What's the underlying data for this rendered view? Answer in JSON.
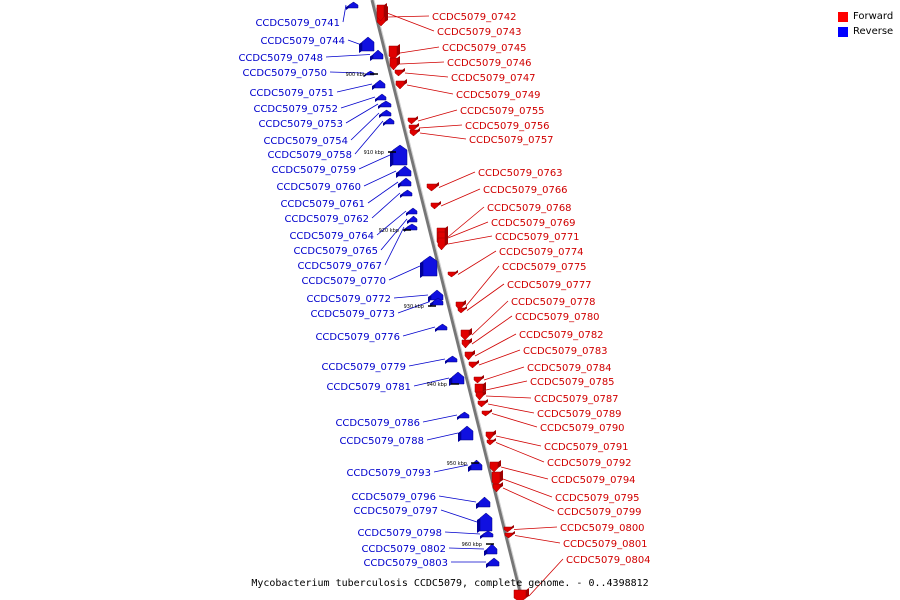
{
  "legend": [
    {
      "label": "Forward",
      "color": "#ff0000"
    },
    {
      "label": "Reverse",
      "color": "#0000ff"
    }
  ],
  "caption": "Mycobacterium tuberculosis CCDC5079, complete genome. - 0..4398812",
  "colors": {
    "forward": "#e00000",
    "reverse": "#1010e0",
    "forward_label": "#d00000",
    "reverse_label": "#0000cc",
    "backbone": "#999999"
  },
  "scale_ticks": [
    "900 kbp",
    "910 kbp",
    "920 kbp",
    "930 kbp",
    "940 kbp",
    "950 kbp",
    "960 kbp"
  ],
  "genes_forward": [
    "CCDC5079_0742",
    "CCDC5079_0743",
    "CCDC5079_0745",
    "CCDC5079_0746",
    "CCDC5079_0747",
    "CCDC5079_0749",
    "CCDC5079_0755",
    "CCDC5079_0756",
    "CCDC5079_0757",
    "CCDC5079_0763",
    "CCDC5079_0766",
    "CCDC5079_0768",
    "CCDC5079_0769",
    "CCDC5079_0771",
    "CCDC5079_0774",
    "CCDC5079_0775",
    "CCDC5079_0777",
    "CCDC5079_0778",
    "CCDC5079_0780",
    "CCDC5079_0782",
    "CCDC5079_0783",
    "CCDC5079_0784",
    "CCDC5079_0785",
    "CCDC5079_0787",
    "CCDC5079_0789",
    "CCDC5079_0790",
    "CCDC5079_0791",
    "CCDC5079_0792",
    "CCDC5079_0794",
    "CCDC5079_0795",
    "CCDC5079_0799",
    "CCDC5079_0800",
    "CCDC5079_0801",
    "CCDC5079_0804"
  ],
  "genes_reverse": [
    "CCDC5079_0741",
    "CCDC5079_0744",
    "CCDC5079_0748",
    "CCDC5079_0750",
    "CCDC5079_0751",
    "CCDC5079_0752",
    "CCDC5079_0753",
    "CCDC5079_0754",
    "CCDC5079_0758",
    "CCDC5079_0759",
    "CCDC5079_0760",
    "CCDC5079_0761",
    "CCDC5079_0762",
    "CCDC5079_0764",
    "CCDC5079_0765",
    "CCDC5079_0767",
    "CCDC5079_0770",
    "CCDC5079_0772",
    "CCDC5079_0773",
    "CCDC5079_0776",
    "CCDC5079_0779",
    "CCDC5079_0781",
    "CCDC5079_0786",
    "CCDC5079_0788",
    "CCDC5079_0793",
    "CCDC5079_0796",
    "CCDC5079_0797",
    "CCDC5079_0798",
    "CCDC5079_0802",
    "CCDC5079_0803"
  ]
}
